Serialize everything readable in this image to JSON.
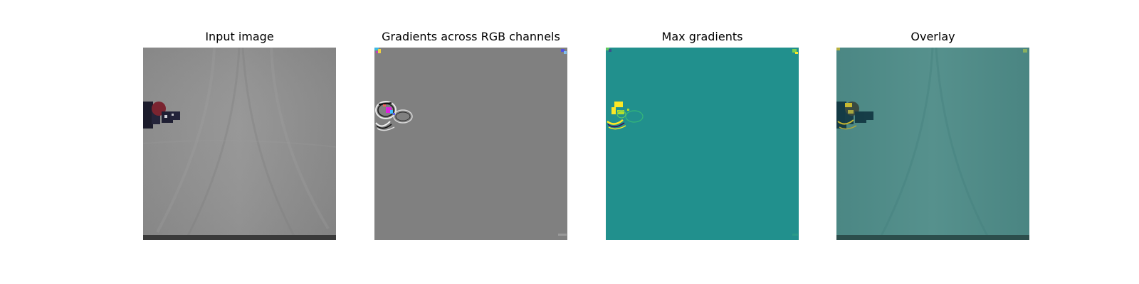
{
  "figure": {
    "panels": [
      {
        "title": "Input image"
      },
      {
        "title": "Gradients across RGB channels"
      },
      {
        "title": "Max gradients"
      },
      {
        "title": "Overlay"
      }
    ]
  },
  "colors": {
    "cloth_gray": "#8f8f8f",
    "gradient_gray": "#808080",
    "viridis_teal": "#21908d",
    "viridis_yellow": "#fde725",
    "overlay_teal": "#4f8a86",
    "robot_dark": "#1c1c2c",
    "robot_red": "#7a2430"
  }
}
